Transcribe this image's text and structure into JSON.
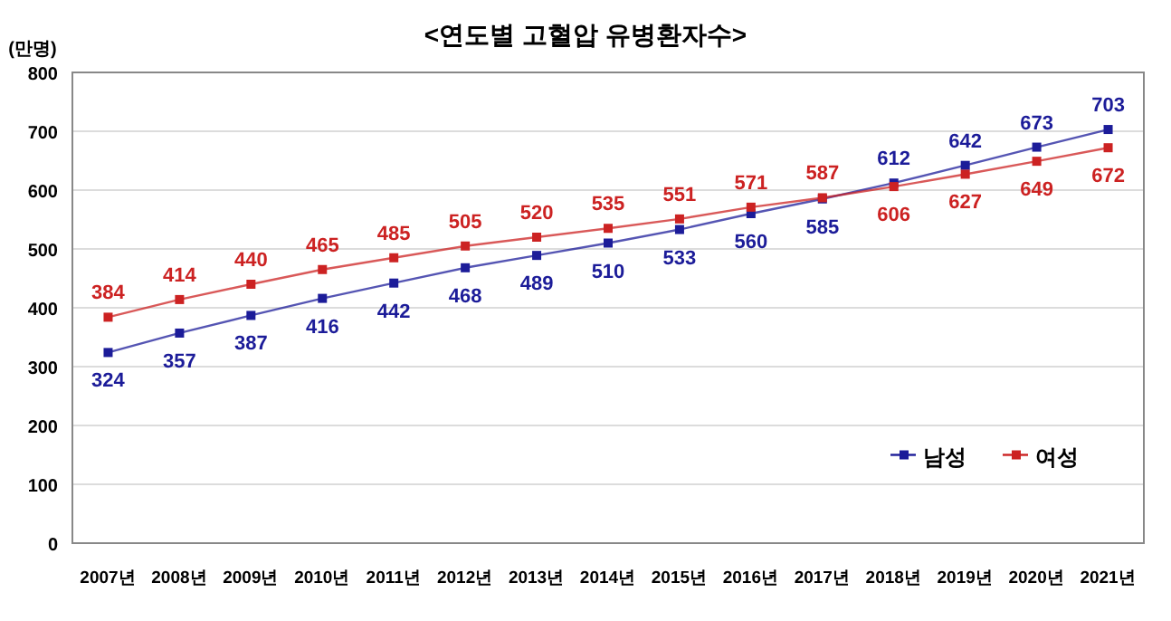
{
  "chart_data": {
    "type": "line",
    "title": "<연도별 고혈압 유병환자수>",
    "ylabel": "(만명)",
    "categories": [
      "2007년",
      "2008년",
      "2009년",
      "2010년",
      "2011년",
      "2012년",
      "2013년",
      "2014년",
      "2015년",
      "2016년",
      "2017년",
      "2018년",
      "2019년",
      "2020년",
      "2021년"
    ],
    "series": [
      {
        "name": "남성",
        "color": "#1c1c99",
        "values": [
          324,
          357,
          387,
          416,
          442,
          468,
          489,
          510,
          533,
          560,
          585,
          612,
          642,
          673,
          703
        ]
      },
      {
        "name": "여성",
        "color": "#cc2222",
        "values": [
          384,
          414,
          440,
          465,
          485,
          505,
          520,
          535,
          551,
          571,
          587,
          606,
          627,
          649,
          672
        ]
      }
    ],
    "ylim": [
      0,
      800
    ],
    "yticks": [
      0,
      100,
      200,
      300,
      400,
      500,
      600,
      700,
      800
    ],
    "grid": "y",
    "legend": "bottom right",
    "marker": "square",
    "line_style": "solid",
    "data_labels": true
  }
}
